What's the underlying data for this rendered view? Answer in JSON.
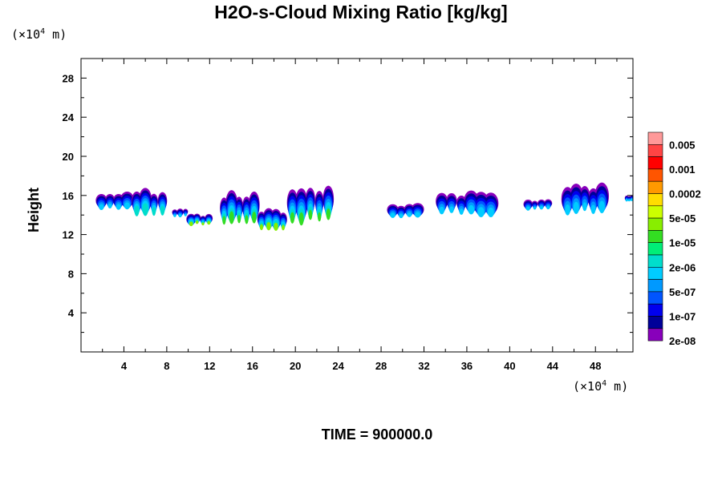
{
  "chart_data": {
    "type": "heatmap",
    "title": "H2O-s-Cloud Mixing Ratio [kg/kg]",
    "ylabel": "Height",
    "x_unit": {
      "prefix": "(×10",
      "exp": "4",
      "suffix": " m)"
    },
    "y_unit": {
      "prefix": "(×10",
      "exp": "4",
      "suffix": " m)"
    },
    "xlim": [
      0,
      51.5
    ],
    "ylim": [
      0,
      30
    ],
    "x_ticks": [
      4,
      8,
      12,
      16,
      20,
      24,
      28,
      32,
      36,
      40,
      44,
      48
    ],
    "x_tick_labels": [
      "4",
      "8",
      "12",
      "16",
      "20",
      "24",
      "28",
      "32",
      "36",
      "40",
      "44",
      "48"
    ],
    "y_ticks": [
      4,
      8,
      12,
      16,
      20,
      24,
      28
    ],
    "y_tick_labels": [
      "4",
      "8",
      "12",
      "16",
      "20",
      "24",
      "28"
    ],
    "colorbar": {
      "colors": [
        "#ff9999",
        "#ff4444",
        "#ff0000",
        "#ff5500",
        "#ff9900",
        "#ffdd00",
        "#ccff00",
        "#88ee00",
        "#33dd22",
        "#00ee77",
        "#00ddcc",
        "#00ccff",
        "#0099ff",
        "#0055ff",
        "#0000ee",
        "#000099",
        "#8800bb"
      ],
      "labels": [
        "0.005",
        "0.001",
        "0.0002",
        "5e-05",
        "1e-05",
        "2e-06",
        "5e-07",
        "1e-07",
        "2e-08"
      ]
    },
    "clouds": [
      {
        "x": [
          1.5,
          4.7
        ],
        "base": 14.2,
        "top": 16.0,
        "peak": "#00ccff"
      },
      {
        "x": [
          4.8,
          8.0
        ],
        "base": 13.4,
        "top": 16.3,
        "peak": "#00ddcc"
      },
      {
        "x": [
          8.5,
          10.0
        ],
        "base": 13.6,
        "top": 14.6,
        "peak": "#00ccff"
      },
      {
        "x": [
          10.0,
          12.2
        ],
        "base": 12.8,
        "top": 14.0,
        "peak": "#88ee00"
      },
      {
        "x": [
          13.0,
          16.5
        ],
        "base": 12.5,
        "top": 15.8,
        "peak": "#33dd22"
      },
      {
        "x": [
          16.5,
          19.2
        ],
        "base": 12.0,
        "top": 14.2,
        "peak": "#88ee00"
      },
      {
        "x": [
          19.3,
          23.5
        ],
        "base": 12.5,
        "top": 16.5,
        "peak": "#33dd22"
      },
      {
        "x": [
          28.7,
          31.8
        ],
        "base": 13.5,
        "top": 15.0,
        "peak": "#00ccff"
      },
      {
        "x": [
          33.2,
          38.7
        ],
        "base": 13.6,
        "top": 16.1,
        "peak": "#00ccff"
      },
      {
        "x": [
          41.4,
          43.9
        ],
        "base": 14.3,
        "top": 15.5,
        "peak": "#0099ff"
      },
      {
        "x": [
          45.0,
          49.0
        ],
        "base": 13.6,
        "top": 16.6,
        "peak": "#00ccff"
      },
      {
        "x": [
          50.8,
          51.5
        ],
        "base": 15.3,
        "top": 15.9,
        "peak": "#0099ff"
      }
    ]
  },
  "footer": {
    "time_label": "TIME = 900000.0"
  }
}
